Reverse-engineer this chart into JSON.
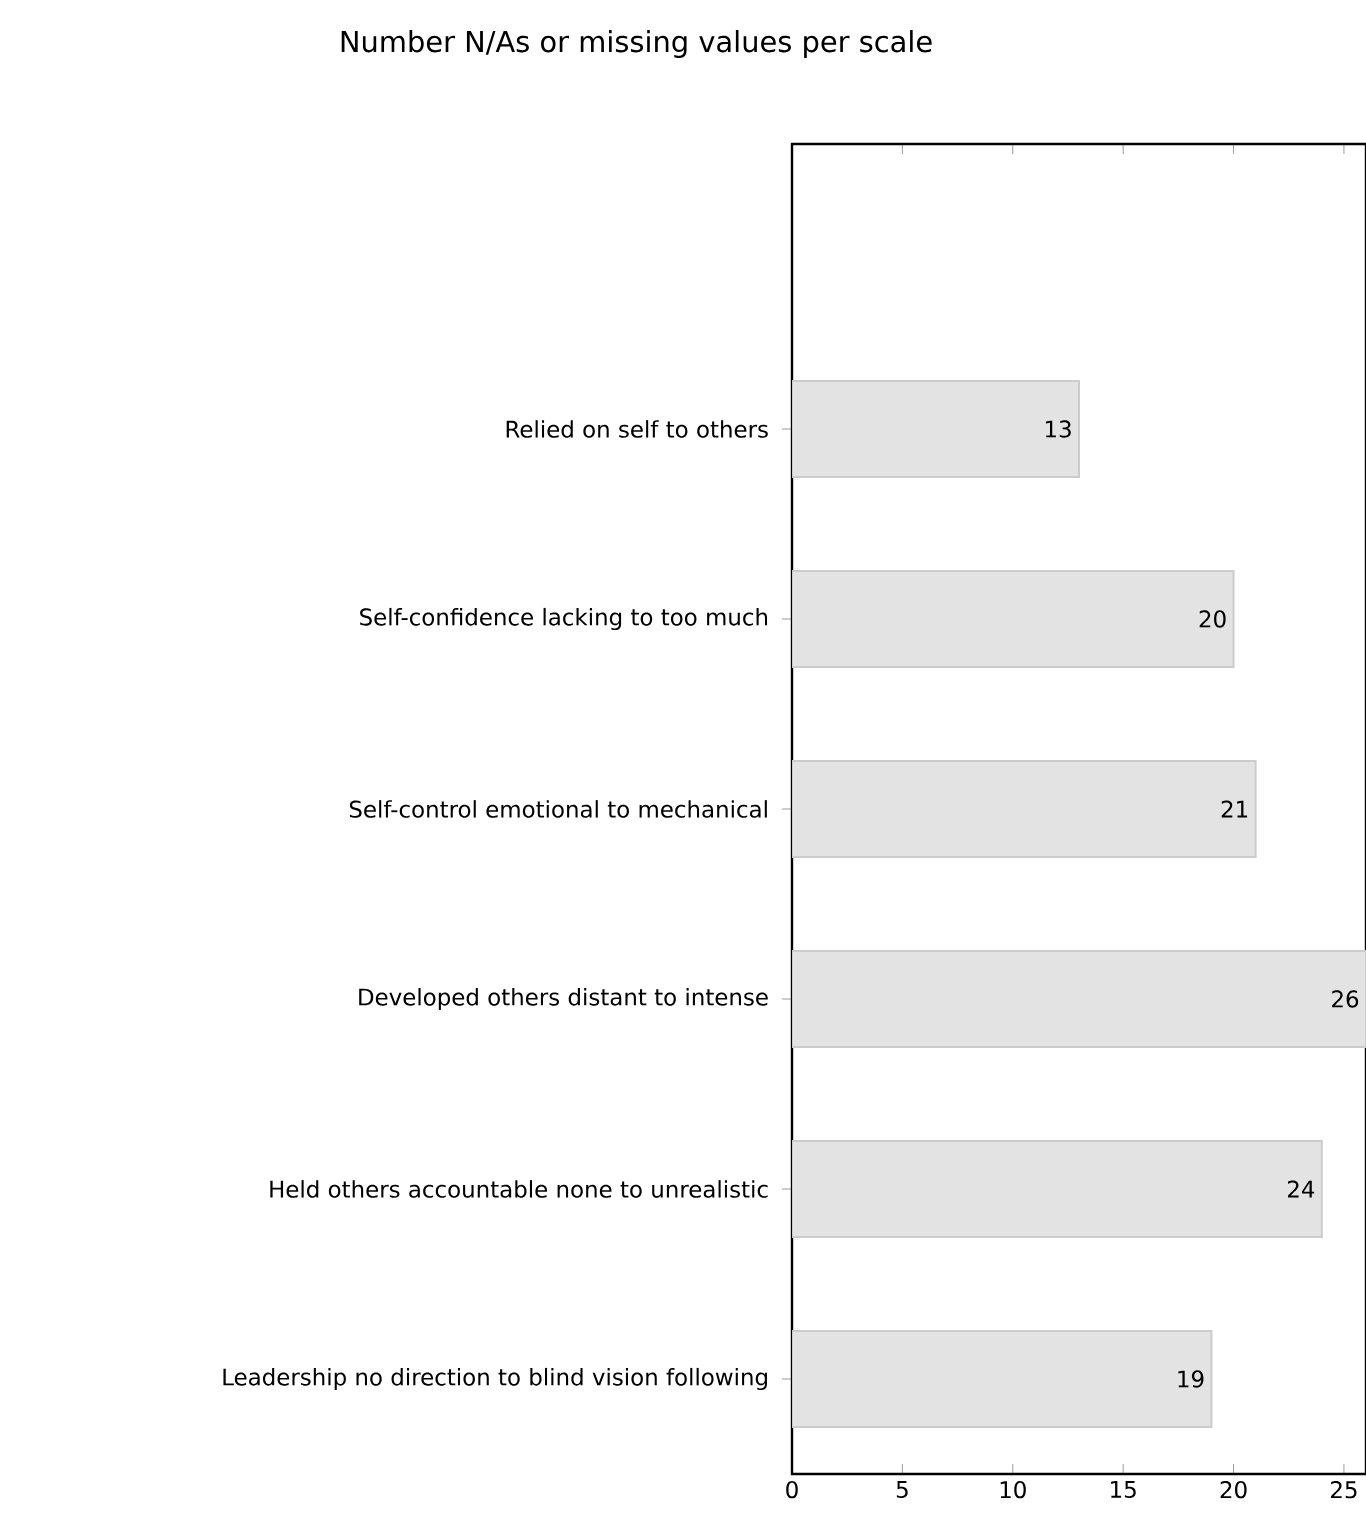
{
  "chart_data": {
    "type": "bar",
    "orientation": "horizontal",
    "title": "Number N/As or missing values per scale",
    "categories": [
      "Relied on self to others",
      "Self-confidence lacking to too much",
      "Self-control emotional to mechanical",
      "Developed others distant to intense",
      "Held others accountable none to unrealistic",
      "Leadership no direction to blind vision following"
    ],
    "values": [
      13,
      20,
      21,
      26,
      24,
      19
    ],
    "color": "#e3e3e3",
    "xlim": [
      0,
      26
    ],
    "xticks": [
      0,
      5,
      10,
      15,
      20,
      25
    ],
    "data_labels": true,
    "grid": false
  }
}
